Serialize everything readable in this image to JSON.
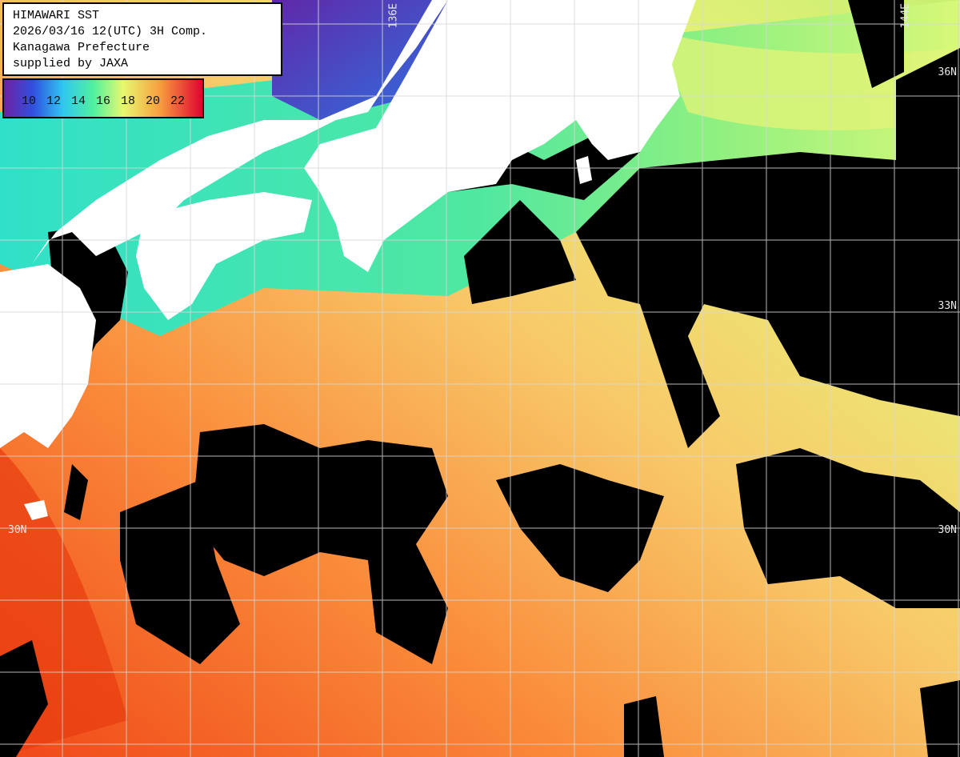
{
  "header": {
    "lines": [
      "HIMAWARI SST",
      "2026/03/16 12(UTC) 3H Comp.",
      "Kanagawa Prefecture",
      "supplied by JAXA"
    ]
  },
  "colorbar": {
    "labels": [
      10,
      12,
      14,
      16,
      18,
      20,
      22
    ]
  },
  "grid_labels": {
    "longitude": [
      "136E",
      "144E"
    ],
    "latitude_right": [
      "36N",
      "33N",
      "30N"
    ],
    "latitude_left": [
      "30N"
    ]
  }
}
